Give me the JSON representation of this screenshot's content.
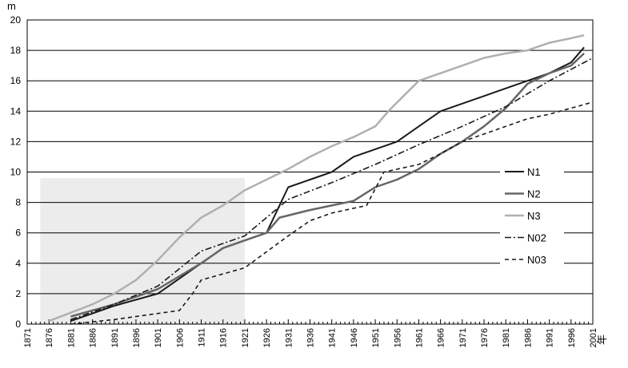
{
  "chart_data": {
    "type": "line",
    "yunit": "m",
    "xunit": "年",
    "ylim": [
      0,
      20
    ],
    "yticks": [
      0,
      2,
      4,
      6,
      8,
      10,
      12,
      14,
      16,
      18,
      20
    ],
    "xlim": [
      1871,
      2001
    ],
    "xticks": [
      1871,
      1876,
      1881,
      1886,
      1891,
      1896,
      1901,
      1906,
      1911,
      1916,
      1921,
      1926,
      1931,
      1936,
      1941,
      1946,
      1951,
      1956,
      1961,
      1966,
      1971,
      1976,
      1981,
      1986,
      1991,
      1996,
      2001
    ],
    "grid": "horizontal",
    "shaded_region": {
      "x": [
        1874,
        1921
      ],
      "y": [
        0,
        9.6
      ],
      "color": "#ececec"
    },
    "legend_position": "right-middle",
    "series": [
      {
        "name": "N1",
        "color": "#1a1a1a",
        "dash": "solid",
        "width": 2,
        "x": [
          1881,
          1891,
          1901,
          1911,
          1916,
          1921,
          1926,
          1931,
          1936,
          1941,
          1946,
          1951,
          1956,
          1961,
          1966,
          1971,
          1976,
          1981,
          1986,
          1991,
          1996,
          1999
        ],
        "y": [
          0.2,
          1.2,
          2.0,
          4.0,
          5.0,
          5.5,
          6.0,
          9.0,
          9.5,
          10.0,
          11.0,
          11.5,
          12.0,
          13.0,
          14.0,
          14.5,
          15.0,
          15.5,
          16.0,
          16.5,
          17.2,
          18.2
        ]
      },
      {
        "name": "N2",
        "color": "#666666",
        "dash": "solid",
        "width": 2.5,
        "x": [
          1881,
          1891,
          1901,
          1911,
          1916,
          1921,
          1926,
          1929,
          1936,
          1941,
          1946,
          1951,
          1956,
          1961,
          1966,
          1971,
          1976,
          1981,
          1986,
          1991,
          1996,
          1999
        ],
        "y": [
          0.5,
          1.3,
          2.3,
          4.0,
          5.0,
          5.5,
          6.0,
          7.0,
          7.5,
          7.8,
          8.1,
          9.0,
          9.5,
          10.2,
          11.2,
          12.0,
          13.0,
          14.2,
          15.8,
          16.5,
          17.0,
          17.8
        ]
      },
      {
        "name": "N3",
        "color": "#b0b0b0",
        "dash": "solid",
        "width": 2.5,
        "x": [
          1876,
          1886,
          1891,
          1896,
          1901,
          1906,
          1911,
          1916,
          1921,
          1926,
          1931,
          1936,
          1941,
          1946,
          1951,
          1954,
          1961,
          1966,
          1971,
          1976,
          1981,
          1986,
          1991,
          1996,
          1999
        ],
        "y": [
          0.2,
          1.3,
          2.0,
          2.9,
          4.2,
          5.7,
          7.0,
          7.8,
          8.8,
          9.5,
          10.2,
          11.0,
          11.7,
          12.3,
          13.0,
          14.0,
          16.0,
          16.5,
          17.0,
          17.5,
          17.8,
          18.0,
          18.5,
          18.8,
          19.0
        ]
      },
      {
        "name": "N02",
        "color": "#1a1a1a",
        "dash": "8,3,2,3",
        "width": 1.6,
        "x": [
          1881,
          1891,
          1901,
          1911,
          1921,
          1931,
          1941,
          1951,
          1961,
          1971,
          1981,
          1991,
          2001
        ],
        "y": [
          0.3,
          1.3,
          2.5,
          4.8,
          5.8,
          8.2,
          9.3,
          10.5,
          11.8,
          13.0,
          14.3,
          16.0,
          17.5
        ]
      },
      {
        "name": "N03",
        "color": "#1a1a1a",
        "dash": "5,4",
        "width": 1.6,
        "x": [
          1881,
          1891,
          1901,
          1906,
          1909,
          1911,
          1921,
          1931,
          1936,
          1941,
          1949,
          1953,
          1961,
          1966,
          1971,
          1976,
          1981,
          1986,
          1991,
          1996,
          2001
        ],
        "y": [
          0.0,
          0.3,
          0.7,
          0.9,
          2.0,
          2.9,
          3.7,
          5.8,
          6.8,
          7.3,
          7.8,
          10.0,
          10.5,
          11.2,
          12.0,
          12.5,
          13.0,
          13.5,
          13.8,
          14.2,
          14.6
        ]
      }
    ]
  }
}
